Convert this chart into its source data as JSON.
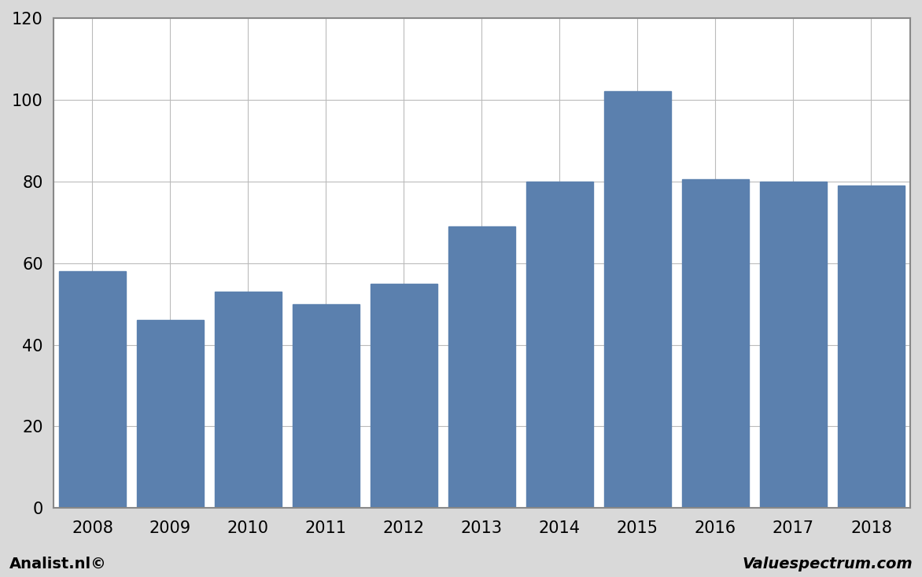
{
  "categories": [
    "2008",
    "2009",
    "2010",
    "2011",
    "2012",
    "2013",
    "2014",
    "2015",
    "2016",
    "2017",
    "2018"
  ],
  "values": [
    58,
    46,
    53,
    50,
    55,
    69,
    80,
    102,
    80.5,
    80,
    79
  ],
  "bar_color": "#5b80ae",
  "background_color": "#d9d9d9",
  "plot_background_color": "#ffffff",
  "ylim": [
    0,
    120
  ],
  "yticks": [
    0,
    20,
    40,
    60,
    80,
    100,
    120
  ],
  "grid_color": "#bbbbbb",
  "footer_left": "Analist.nl©",
  "footer_right": "Valuespectrum.com",
  "border_color": "#888888",
  "tick_fontsize": 15,
  "footer_fontsize": 14
}
